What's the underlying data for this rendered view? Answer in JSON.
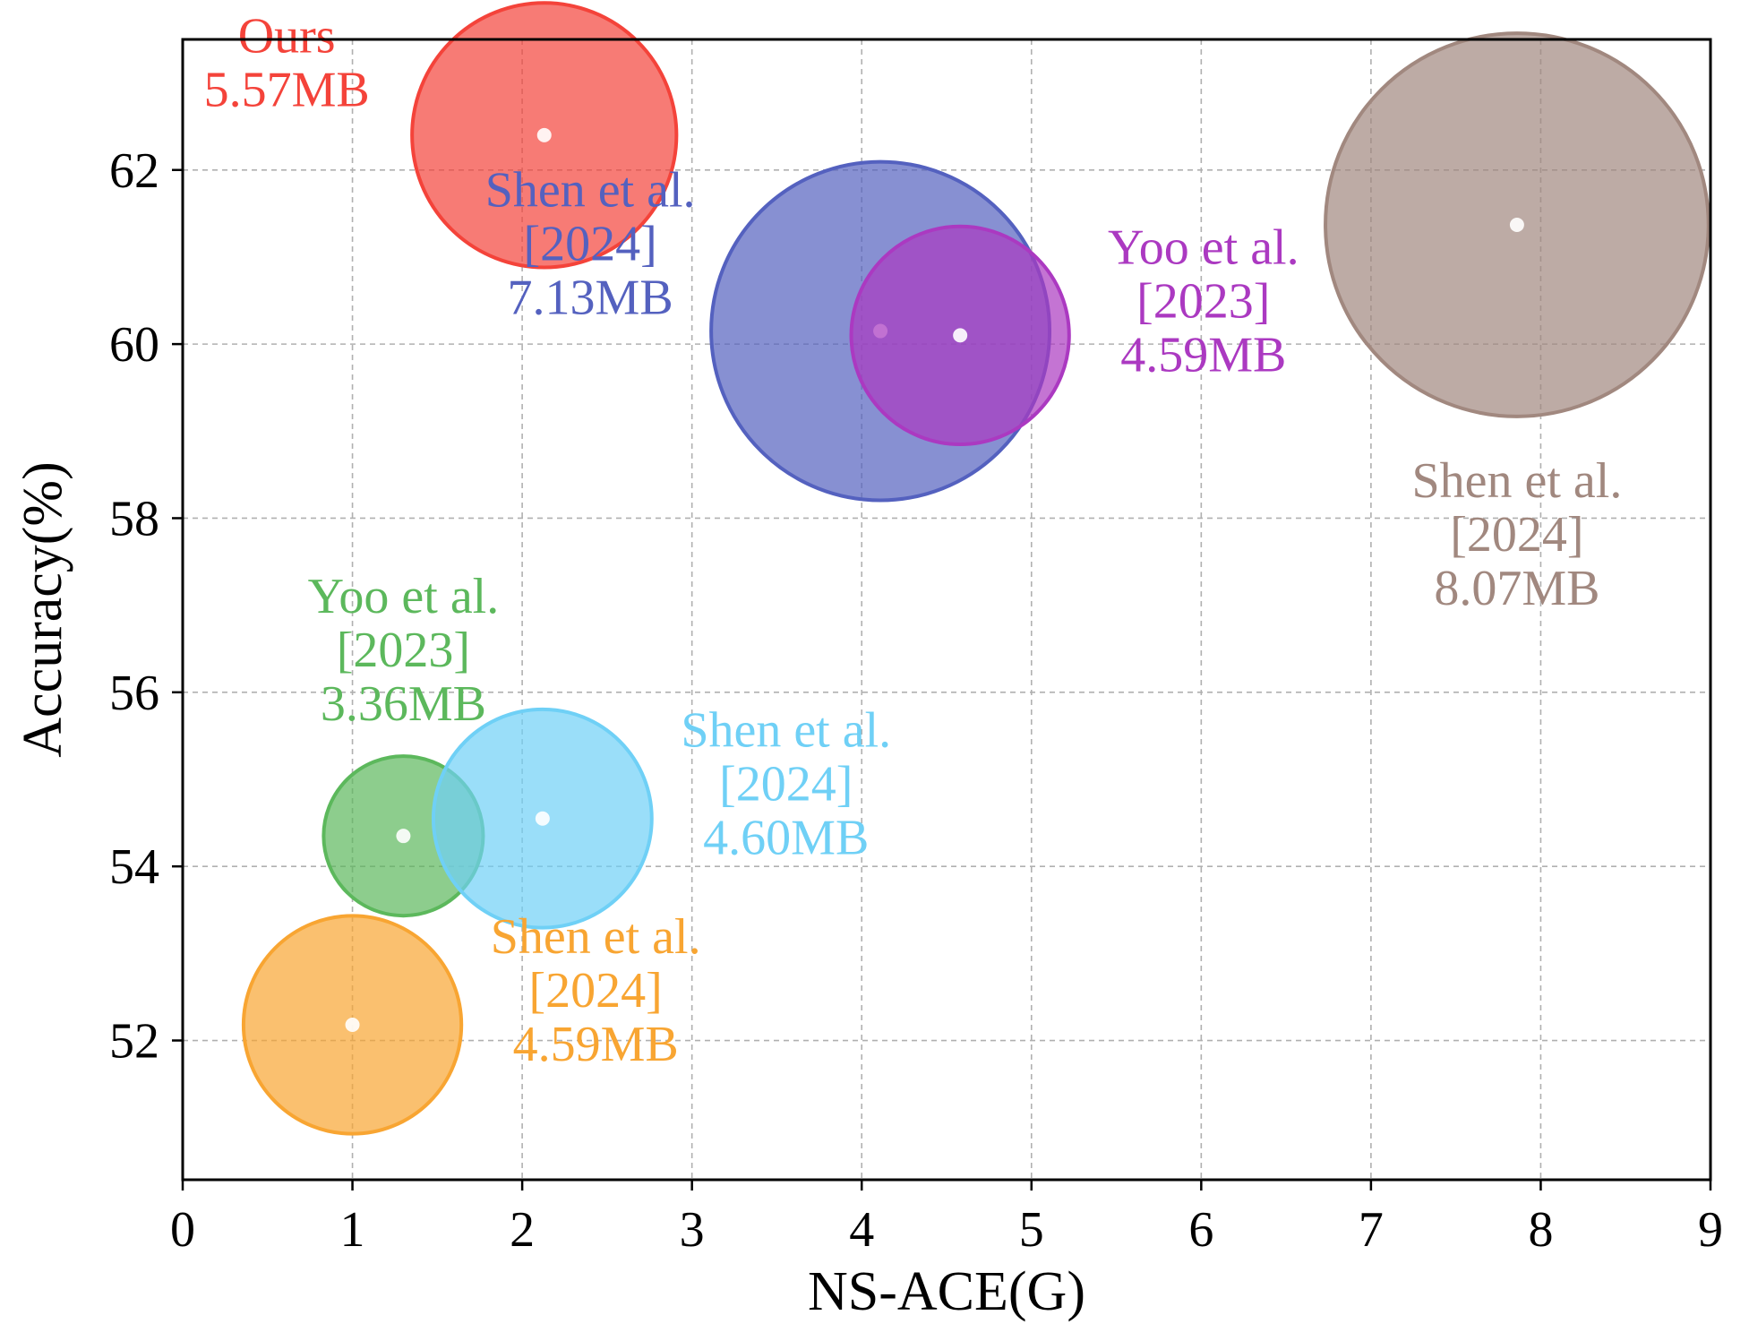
{
  "chart_data": {
    "type": "scatter",
    "xlabel": "NS-ACE(G)",
    "ylabel": "Accuracy(%)",
    "xlim": [
      0,
      9
    ],
    "ylim": [
      50.4,
      63.5
    ],
    "xticks": [
      0,
      1,
      2,
      3,
      4,
      5,
      6,
      7,
      8,
      9
    ],
    "yticks": [
      52,
      54,
      56,
      58,
      60,
      62
    ],
    "grid": true,
    "bubble_size_unit": "MB",
    "points": [
      {
        "name": "Ours",
        "x": 2.13,
        "y": 62.4,
        "size_mb": 5.57,
        "color": "#f4433a",
        "label_lines": [
          "Ours",
          "5.57MB"
        ],
        "label_anchor": "left"
      },
      {
        "name": "Shen et al. [2024]",
        "x": 4.11,
        "y": 60.15,
        "size_mb": 7.13,
        "color": "#5461bf",
        "label_lines": [
          "Shen et al.",
          "[2024]",
          "7.13MB"
        ],
        "label_anchor": "upper-left"
      },
      {
        "name": "Yoo et al. [2023]",
        "x": 4.58,
        "y": 60.1,
        "size_mb": 4.59,
        "color": "#ab39c1",
        "label_lines": [
          "Yoo et al.",
          "[2023]",
          "4.59MB"
        ],
        "label_anchor": "right"
      },
      {
        "name": "Shen et al. [2024]",
        "x": 7.86,
        "y": 61.37,
        "size_mb": 8.07,
        "color": "#a1887f",
        "label_lines": [
          "Shen et al.",
          "[2024]",
          "8.07MB"
        ],
        "label_anchor": "below"
      },
      {
        "name": "Yoo et al. [2023]",
        "x": 1.3,
        "y": 54.35,
        "size_mb": 3.36,
        "color": "#5cb85c",
        "label_lines": [
          "Yoo et al.",
          "[2023]",
          "3.36MB"
        ],
        "label_anchor": "above"
      },
      {
        "name": "Shen et al. [2024]",
        "x": 2.12,
        "y": 54.55,
        "size_mb": 4.6,
        "color": "#6fd0f6",
        "label_lines": [
          "Shen et al.",
          "[2024]",
          "4.60MB"
        ],
        "label_anchor": "right"
      },
      {
        "name": "Shen et al. [2024]",
        "x": 1.0,
        "y": 52.18,
        "size_mb": 4.59,
        "color": "#f8a532",
        "label_lines": [
          "Shen et al.",
          "[2024]",
          "4.59MB"
        ],
        "label_anchor": "right"
      }
    ]
  }
}
